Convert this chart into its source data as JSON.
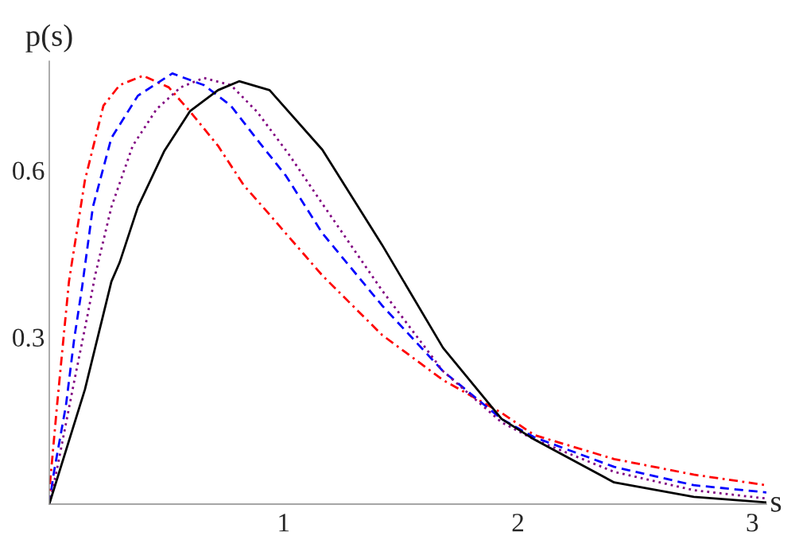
{
  "chart_data": {
    "type": "line",
    "xlabel": "s",
    "ylabel": "p(s)",
    "xlim": [
      0,
      3.06
    ],
    "ylim": [
      0,
      0.796
    ],
    "xticks": [
      1,
      2,
      3
    ],
    "yticks": [
      0.3,
      0.6
    ],
    "grid": false,
    "legend": false,
    "marker": "none",
    "series": [
      {
        "color": "#ff0000",
        "line_style": "dashdot",
        "x": [
          0,
          0.0045,
          0.033,
          0.061,
          0.084,
          0.095,
          0.152,
          0.231,
          0.3,
          0.4,
          0.51,
          0.6,
          0.72,
          0.83,
          0.92,
          1.165,
          1.42,
          1.68,
          1.93,
          2.07,
          2.41,
          2.75,
          3.06
        ],
        "values": [
          0,
          0.044,
          0.177,
          0.3,
          0.4,
          0.43,
          0.582,
          0.716,
          0.753,
          0.77,
          0.749,
          0.706,
          0.644,
          0.573,
          0.53,
          0.411,
          0.304,
          0.223,
          0.164,
          0.124,
          0.081,
          0.053,
          0.034
        ]
      },
      {
        "color": "#0000ff",
        "line_style": "dashed",
        "x": [
          0,
          0.02,
          0.071,
          0.106,
          0.14,
          0.186,
          0.265,
          0.378,
          0.525,
          0.66,
          0.775,
          0.887,
          1.01,
          1.165,
          1.42,
          1.68,
          1.93,
          2.07,
          2.41,
          2.75,
          3.06
        ],
        "values": [
          0,
          0.058,
          0.177,
          0.296,
          0.39,
          0.534,
          0.658,
          0.734,
          0.774,
          0.753,
          0.716,
          0.655,
          0.59,
          0.487,
          0.357,
          0.239,
          0.153,
          0.12,
          0.067,
          0.034,
          0.021
        ]
      },
      {
        "color": "#800080",
        "line_style": "dotted",
        "x": [
          0,
          0.033,
          0.106,
          0.163,
          0.195,
          0.265,
          0.356,
          0.458,
          0.56,
          0.66,
          0.775,
          0.887,
          1.02,
          1.165,
          1.42,
          1.68,
          1.93,
          2.07,
          2.41,
          2.75,
          3.06
        ],
        "values": [
          0,
          0.063,
          0.22,
          0.339,
          0.41,
          0.534,
          0.644,
          0.71,
          0.749,
          0.766,
          0.753,
          0.705,
          0.63,
          0.54,
          0.384,
          0.239,
          0.147,
          0.116,
          0.058,
          0.025,
          0.01
        ]
      },
      {
        "color": "#000000",
        "line_style": "solid",
        "x": [
          0,
          0.152,
          0.265,
          0.3,
          0.378,
          0.49,
          0.6,
          0.72,
          0.81,
          0.94,
          1.165,
          1.42,
          1.68,
          1.93,
          2.07,
          2.41,
          2.75,
          3.06
        ],
        "values": [
          0,
          0.206,
          0.4,
          0.434,
          0.534,
          0.634,
          0.706,
          0.744,
          0.76,
          0.744,
          0.637,
          0.466,
          0.281,
          0.153,
          0.116,
          0.039,
          0.013,
          0.003
        ]
      }
    ]
  }
}
